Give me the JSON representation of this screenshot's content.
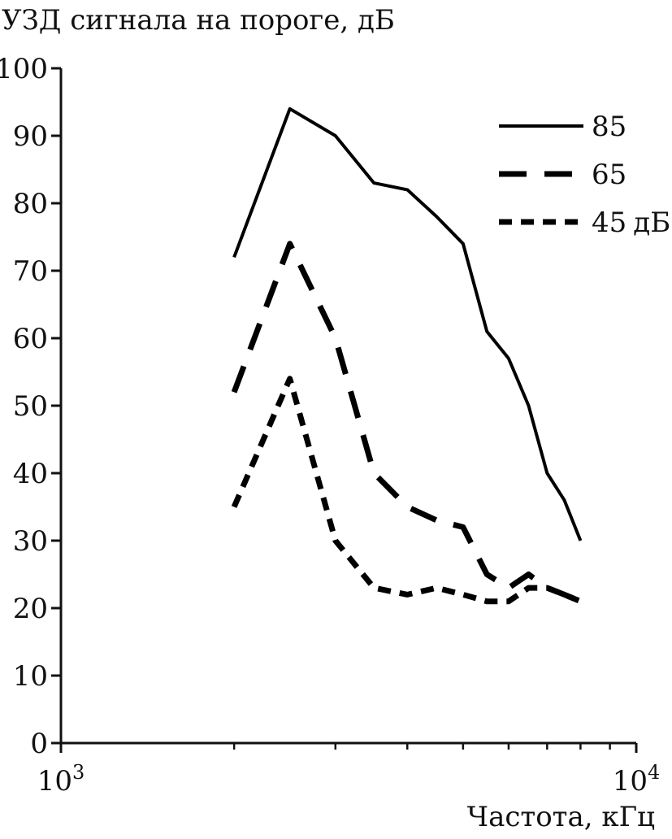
{
  "chart_data": {
    "type": "line",
    "ylabel": "УЗД сигнала на пороге, дБ",
    "xlabel": "Частота, кГц",
    "x_scale": "log",
    "xlim": [
      1000,
      10000
    ],
    "ylim": [
      0,
      100
    ],
    "y_ticks": [
      0,
      10,
      20,
      30,
      40,
      50,
      60,
      70,
      80,
      90,
      100
    ],
    "y_tick_labels": [
      "0",
      "10",
      "20",
      "30",
      "40",
      "50",
      "60",
      "70",
      "80",
      "90",
      "100"
    ],
    "x_tick_labels": [
      {
        "value": 1000,
        "base": "10",
        "exp": "3"
      },
      {
        "value": 10000,
        "base": "10",
        "exp": "4"
      }
    ],
    "x_minor_ticks": [
      2000,
      3000,
      4000,
      5000,
      6000,
      7000,
      8000,
      9000
    ],
    "grid": false,
    "legend": {
      "placement": "top-right",
      "unit_suffix": "дБ"
    },
    "series": [
      {
        "name": "85",
        "style": "solid",
        "color": "#000000",
        "x": [
          2000,
          2500,
          3000,
          3500,
          4000,
          4500,
          5000,
          5500,
          6000,
          6500,
          7000,
          7500,
          8000
        ],
        "y": [
          72,
          94,
          90,
          83,
          82,
          78,
          74,
          61,
          57,
          50,
          40,
          36,
          30
        ]
      },
      {
        "name": "65",
        "style": "long-dash",
        "color": "#000000",
        "x": [
          2000,
          2500,
          3000,
          3500,
          4000,
          4500,
          5000,
          5500,
          6000,
          6500,
          7000,
          7500,
          8000
        ],
        "y": [
          52,
          74,
          60,
          40,
          35,
          33,
          32,
          25,
          23,
          25,
          23,
          22,
          21
        ]
      },
      {
        "name": "45",
        "style": "short-dash",
        "color": "#000000",
        "x": [
          2000,
          2500,
          3000,
          3500,
          4000,
          4500,
          5000,
          5500,
          6000,
          6500,
          7000,
          7500,
          8000
        ],
        "y": [
          35,
          54,
          30,
          23,
          22,
          23,
          22,
          21,
          21,
          23,
          23,
          22,
          21
        ]
      }
    ]
  }
}
